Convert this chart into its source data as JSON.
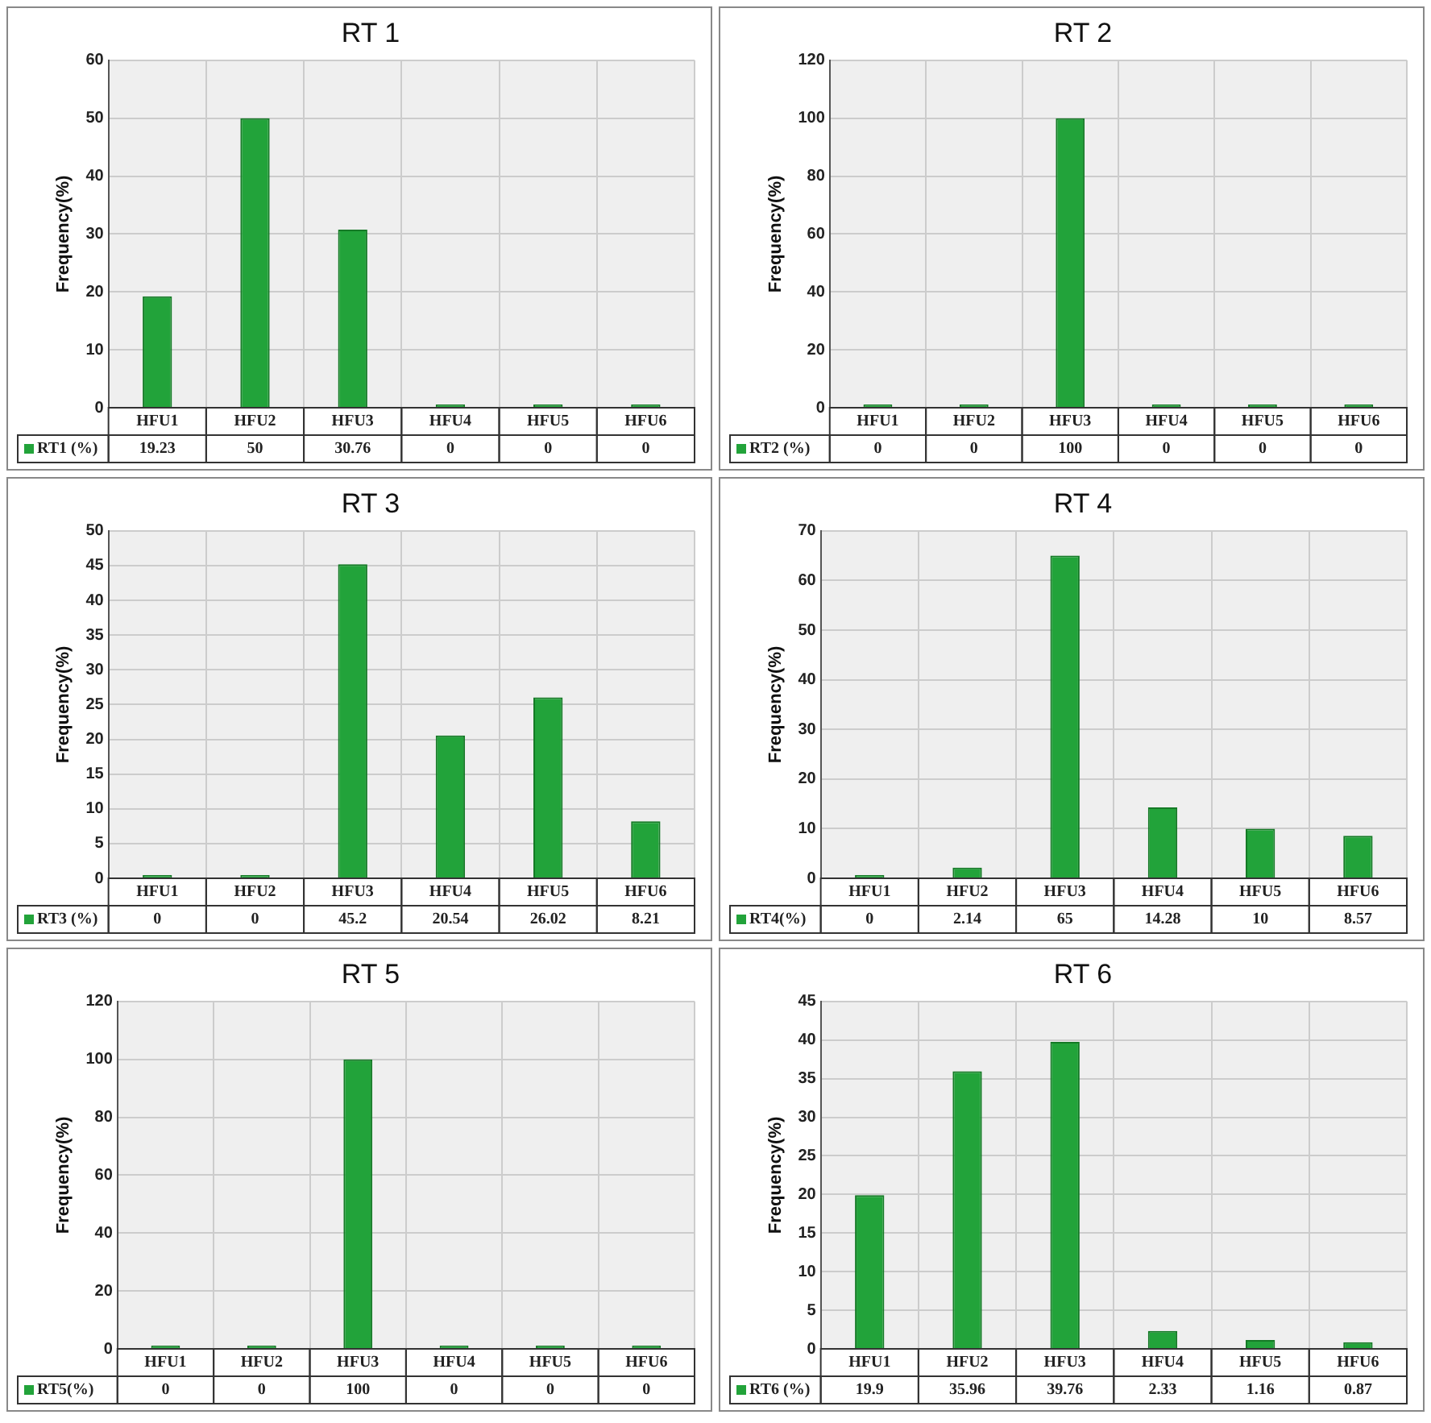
{
  "chart_data": [
    {
      "type": "bar",
      "title": "RT 1",
      "ylabel": "Frequency(%)",
      "categories": [
        "HFU1",
        "HFU2",
        "HFU3",
        "HFU4",
        "HFU5",
        "HFU6"
      ],
      "series": [
        {
          "name": "RT1 (%)",
          "color": "#22a33a",
          "values": [
            19.23,
            50,
            30.76,
            0,
            0,
            0
          ]
        }
      ],
      "ylim": [
        0,
        60
      ],
      "yticks": [
        0,
        10,
        20,
        30,
        40,
        50,
        60
      ],
      "grid": true,
      "legend": "bottom",
      "data_labels": true
    },
    {
      "type": "bar",
      "title": "RT 2",
      "ylabel": "Frequency(%)",
      "categories": [
        "HFU1",
        "HFU2",
        "HFU3",
        "HFU4",
        "HFU5",
        "HFU6"
      ],
      "series": [
        {
          "name": "RT2 (%)",
          "color": "#22a33a",
          "values": [
            0,
            0,
            100,
            0,
            0,
            0
          ]
        }
      ],
      "ylim": [
        0,
        120
      ],
      "yticks": [
        0,
        20,
        40,
        60,
        80,
        100,
        120
      ],
      "grid": true,
      "legend": "bottom",
      "data_labels": true
    },
    {
      "type": "bar",
      "title": "RT 3",
      "ylabel": "Frequency(%)",
      "categories": [
        "HFU1",
        "HFU2",
        "HFU3",
        "HFU4",
        "HFU5",
        "HFU6"
      ],
      "series": [
        {
          "name": "RT3 (%)",
          "color": "#22a33a",
          "values": [
            0,
            0,
            45.2,
            20.54,
            26.02,
            8.21
          ]
        }
      ],
      "ylim": [
        0,
        50
      ],
      "yticks": [
        0,
        5,
        10,
        15,
        20,
        25,
        30,
        35,
        40,
        45,
        50
      ],
      "grid": true,
      "legend": "bottom",
      "data_labels": true
    },
    {
      "type": "bar",
      "title": "RT 4",
      "ylabel": "Frequency(%)",
      "categories": [
        "HFU1",
        "HFU2",
        "HFU3",
        "HFU4",
        "HFU5",
        "HFU6"
      ],
      "series": [
        {
          "name": "RT4(%)",
          "color": "#22a33a",
          "values": [
            0,
            2.14,
            65,
            14.28,
            10,
            8.57
          ]
        }
      ],
      "ylim": [
        0,
        70
      ],
      "yticks": [
        0,
        10,
        20,
        30,
        40,
        50,
        60,
        70
      ],
      "grid": true,
      "legend": "bottom",
      "data_labels": true
    },
    {
      "type": "bar",
      "title": "RT 5",
      "ylabel": "Frequency(%)",
      "categories": [
        "HFU1",
        "HFU2",
        "HFU3",
        "HFU4",
        "HFU5",
        "HFU6"
      ],
      "series": [
        {
          "name": "RT5(%)",
          "color": "#22a33a",
          "values": [
            0,
            0,
            100,
            0,
            0,
            0
          ]
        }
      ],
      "ylim": [
        0,
        120
      ],
      "yticks": [
        0,
        20,
        40,
        60,
        80,
        100,
        120
      ],
      "grid": true,
      "legend": "bottom",
      "data_labels": true
    },
    {
      "type": "bar",
      "title": "RT 6",
      "ylabel": "Frequency(%)",
      "categories": [
        "HFU1",
        "HFU2",
        "HFU3",
        "HFU4",
        "HFU5",
        "HFU6"
      ],
      "series": [
        {
          "name": "RT6 (%)",
          "color": "#22a33a",
          "values": [
            19.9,
            35.96,
            39.76,
            2.33,
            1.16,
            0.87
          ]
        }
      ],
      "ylim": [
        0,
        45
      ],
      "yticks": [
        0,
        5,
        10,
        15,
        20,
        25,
        30,
        35,
        40,
        45
      ],
      "grid": true,
      "legend": "bottom",
      "data_labels": true
    }
  ]
}
